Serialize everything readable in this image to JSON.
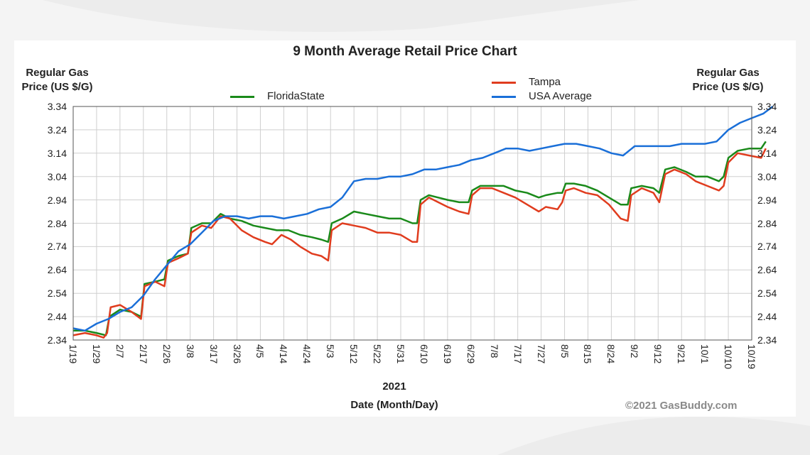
{
  "chart_data": {
    "type": "line",
    "title": "9 Month Average Retail Price Chart",
    "ylabel_left": "Regular Gas Price (US $/G)",
    "ylabel_right": "Regular Gas Price (US $/G)",
    "ylabel_left_lines": [
      "Regular Gas",
      "Price (US $/G)"
    ],
    "ylabel_right_lines": [
      "Regular Gas",
      "Price (US $/G)"
    ],
    "xlabel": "Date (Month/Day)",
    "year": "2021",
    "ylim": [
      2.34,
      3.34
    ],
    "yticks": [
      "3.34",
      "3.24",
      "3.14",
      "3.04",
      "2.94",
      "2.84",
      "2.74",
      "2.64",
      "2.54",
      "2.44",
      "2.34"
    ],
    "xticks": [
      "1/19",
      "1/29",
      "2/7",
      "2/17",
      "2/26",
      "3/8",
      "3/17",
      "3/26",
      "4/5",
      "4/14",
      "4/24",
      "5/3",
      "5/12",
      "5/22",
      "5/31",
      "6/10",
      "6/19",
      "6/29",
      "7/8",
      "7/17",
      "7/27",
      "8/5",
      "8/15",
      "8/24",
      "9/2",
      "9/12",
      "9/21",
      "10/1",
      "10/10",
      "10/19"
    ],
    "grid": true,
    "legend_placement": "top",
    "series": [
      {
        "name": "FloridaState",
        "color": "#1a8a1a",
        "points": [
          [
            0,
            2.38
          ],
          [
            0.5,
            2.38
          ],
          [
            1,
            2.37
          ],
          [
            1.4,
            2.36
          ],
          [
            1.55,
            2.44
          ],
          [
            2,
            2.47
          ],
          [
            2.5,
            2.46
          ],
          [
            2.9,
            2.44
          ],
          [
            3.05,
            2.58
          ],
          [
            3.5,
            2.59
          ],
          [
            3.9,
            2.6
          ],
          [
            4.05,
            2.68
          ],
          [
            4.5,
            2.7
          ],
          [
            4.9,
            2.71
          ],
          [
            5.05,
            2.82
          ],
          [
            5.5,
            2.84
          ],
          [
            5.9,
            2.84
          ],
          [
            6.3,
            2.88
          ],
          [
            6.7,
            2.86
          ],
          [
            7.2,
            2.85
          ],
          [
            7.7,
            2.83
          ],
          [
            8.2,
            2.82
          ],
          [
            8.7,
            2.81
          ],
          [
            9.2,
            2.81
          ],
          [
            9.7,
            2.79
          ],
          [
            10.2,
            2.78
          ],
          [
            10.6,
            2.77
          ],
          [
            10.9,
            2.76
          ],
          [
            11.05,
            2.84
          ],
          [
            11.5,
            2.86
          ],
          [
            12,
            2.89
          ],
          [
            12.5,
            2.88
          ],
          [
            13,
            2.87
          ],
          [
            13.5,
            2.86
          ],
          [
            14,
            2.86
          ],
          [
            14.5,
            2.84
          ],
          [
            14.7,
            2.84
          ],
          [
            14.85,
            2.94
          ],
          [
            15.2,
            2.96
          ],
          [
            15.6,
            2.95
          ],
          [
            16,
            2.94
          ],
          [
            16.5,
            2.93
          ],
          [
            16.9,
            2.93
          ],
          [
            17.05,
            2.98
          ],
          [
            17.4,
            3.0
          ],
          [
            17.9,
            3.0
          ],
          [
            18.4,
            3.0
          ],
          [
            18.9,
            2.98
          ],
          [
            19.4,
            2.97
          ],
          [
            19.9,
            2.95
          ],
          [
            20.2,
            2.96
          ],
          [
            20.7,
            2.97
          ],
          [
            20.9,
            2.97
          ],
          [
            21.05,
            3.01
          ],
          [
            21.4,
            3.01
          ],
          [
            21.9,
            3.0
          ],
          [
            22.4,
            2.98
          ],
          [
            22.9,
            2.95
          ],
          [
            23.4,
            2.92
          ],
          [
            23.7,
            2.92
          ],
          [
            23.85,
            2.99
          ],
          [
            24.3,
            3.0
          ],
          [
            24.8,
            2.99
          ],
          [
            25.05,
            2.97
          ],
          [
            25.3,
            3.07
          ],
          [
            25.7,
            3.08
          ],
          [
            26.2,
            3.06
          ],
          [
            26.6,
            3.04
          ],
          [
            27.1,
            3.04
          ],
          [
            27.6,
            3.02
          ],
          [
            27.8,
            3.04
          ],
          [
            28.0,
            3.12
          ],
          [
            28.4,
            3.15
          ],
          [
            28.9,
            3.16
          ],
          [
            29.4,
            3.16
          ],
          [
            29.6,
            3.19
          ]
        ]
      },
      {
        "name": "Tampa",
        "color": "#e03c1e",
        "points": [
          [
            0,
            2.36
          ],
          [
            0.5,
            2.37
          ],
          [
            1,
            2.36
          ],
          [
            1.3,
            2.35
          ],
          [
            1.45,
            2.37
          ],
          [
            1.6,
            2.48
          ],
          [
            2,
            2.49
          ],
          [
            2.5,
            2.46
          ],
          [
            2.9,
            2.43
          ],
          [
            3.05,
            2.57
          ],
          [
            3.5,
            2.59
          ],
          [
            3.9,
            2.57
          ],
          [
            4.05,
            2.67
          ],
          [
            4.5,
            2.69
          ],
          [
            4.9,
            2.71
          ],
          [
            5.05,
            2.8
          ],
          [
            5.5,
            2.83
          ],
          [
            5.9,
            2.82
          ],
          [
            6.3,
            2.87
          ],
          [
            6.7,
            2.86
          ],
          [
            7.2,
            2.81
          ],
          [
            7.7,
            2.78
          ],
          [
            8.2,
            2.76
          ],
          [
            8.5,
            2.75
          ],
          [
            8.9,
            2.79
          ],
          [
            9.3,
            2.77
          ],
          [
            9.7,
            2.74
          ],
          [
            10.2,
            2.71
          ],
          [
            10.6,
            2.7
          ],
          [
            10.9,
            2.68
          ],
          [
            11.05,
            2.81
          ],
          [
            11.5,
            2.84
          ],
          [
            12,
            2.83
          ],
          [
            12.5,
            2.82
          ],
          [
            13,
            2.8
          ],
          [
            13.5,
            2.8
          ],
          [
            14,
            2.79
          ],
          [
            14.5,
            2.76
          ],
          [
            14.7,
            2.76
          ],
          [
            14.85,
            2.92
          ],
          [
            15.2,
            2.95
          ],
          [
            15.6,
            2.93
          ],
          [
            16,
            2.91
          ],
          [
            16.5,
            2.89
          ],
          [
            16.9,
            2.88
          ],
          [
            17.05,
            2.96
          ],
          [
            17.4,
            2.99
          ],
          [
            17.9,
            2.99
          ],
          [
            18.4,
            2.97
          ],
          [
            18.9,
            2.95
          ],
          [
            19.4,
            2.92
          ],
          [
            19.9,
            2.89
          ],
          [
            20.2,
            2.91
          ],
          [
            20.7,
            2.9
          ],
          [
            20.9,
            2.93
          ],
          [
            21.05,
            2.98
          ],
          [
            21.4,
            2.99
          ],
          [
            21.9,
            2.97
          ],
          [
            22.4,
            2.96
          ],
          [
            22.9,
            2.92
          ],
          [
            23.4,
            2.86
          ],
          [
            23.7,
            2.85
          ],
          [
            23.85,
            2.96
          ],
          [
            24.3,
            2.99
          ],
          [
            24.8,
            2.97
          ],
          [
            25.05,
            2.93
          ],
          [
            25.3,
            3.05
          ],
          [
            25.7,
            3.07
          ],
          [
            26.2,
            3.05
          ],
          [
            26.6,
            3.02
          ],
          [
            27.1,
            3.0
          ],
          [
            27.6,
            2.98
          ],
          [
            27.8,
            3.0
          ],
          [
            28.0,
            3.1
          ],
          [
            28.4,
            3.14
          ],
          [
            28.9,
            3.13
          ],
          [
            29.4,
            3.12
          ],
          [
            29.6,
            3.16
          ]
        ]
      },
      {
        "name": "USA Average",
        "color": "#1a6fd8",
        "points": [
          [
            0,
            2.39
          ],
          [
            0.5,
            2.38
          ],
          [
            1,
            2.41
          ],
          [
            1.5,
            2.43
          ],
          [
            2,
            2.46
          ],
          [
            2.5,
            2.48
          ],
          [
            3,
            2.53
          ],
          [
            3.5,
            2.6
          ],
          [
            4,
            2.66
          ],
          [
            4.5,
            2.72
          ],
          [
            5,
            2.75
          ],
          [
            5.5,
            2.8
          ],
          [
            6,
            2.85
          ],
          [
            6.5,
            2.87
          ],
          [
            7,
            2.87
          ],
          [
            7.5,
            2.86
          ],
          [
            8,
            2.87
          ],
          [
            8.5,
            2.87
          ],
          [
            9,
            2.86
          ],
          [
            9.5,
            2.87
          ],
          [
            10,
            2.88
          ],
          [
            10.5,
            2.9
          ],
          [
            11,
            2.91
          ],
          [
            11.5,
            2.95
          ],
          [
            12,
            3.02
          ],
          [
            12.5,
            3.03
          ],
          [
            13,
            3.03
          ],
          [
            13.5,
            3.04
          ],
          [
            14,
            3.04
          ],
          [
            14.5,
            3.05
          ],
          [
            15,
            3.07
          ],
          [
            15.5,
            3.07
          ],
          [
            16,
            3.08
          ],
          [
            16.5,
            3.09
          ],
          [
            17,
            3.11
          ],
          [
            17.5,
            3.12
          ],
          [
            18,
            3.14
          ],
          [
            18.5,
            3.16
          ],
          [
            19,
            3.16
          ],
          [
            19.5,
            3.15
          ],
          [
            20,
            3.16
          ],
          [
            20.5,
            3.17
          ],
          [
            21,
            3.18
          ],
          [
            21.5,
            3.18
          ],
          [
            22,
            3.17
          ],
          [
            22.5,
            3.16
          ],
          [
            23,
            3.14
          ],
          [
            23.5,
            3.13
          ],
          [
            24,
            3.17
          ],
          [
            24.5,
            3.17
          ],
          [
            25,
            3.17
          ],
          [
            25.5,
            3.17
          ],
          [
            26,
            3.18
          ],
          [
            26.5,
            3.18
          ],
          [
            27,
            3.18
          ],
          [
            27.5,
            3.19
          ],
          [
            28,
            3.24
          ],
          [
            28.5,
            3.27
          ],
          [
            29,
            3.29
          ],
          [
            29.5,
            3.31
          ],
          [
            29.9,
            3.34
          ]
        ]
      }
    ]
  },
  "credit": "©2021 GasBuddy.com"
}
